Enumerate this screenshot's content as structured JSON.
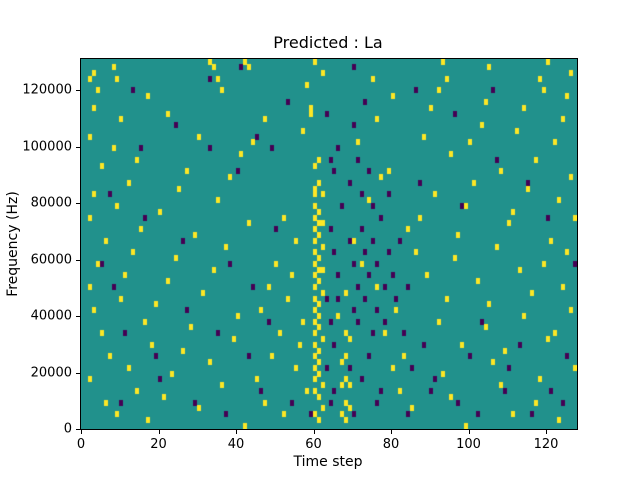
{
  "figure": {
    "title": "Predicted : La",
    "xlabel": "Time step",
    "ylabel": "Frequency (Hz)"
  },
  "chart_data": {
    "type": "heatmap",
    "title": "Predicted : La",
    "xlabel": "Time step",
    "ylabel": "Frequency (Hz)",
    "xlim": [
      0,
      128
    ],
    "ylim": [
      0,
      131072
    ],
    "x_ticks": [
      0,
      20,
      40,
      60,
      80,
      100,
      120
    ],
    "y_ticks": [
      0,
      20000,
      40000,
      60000,
      80000,
      100000,
      120000
    ],
    "grid_cols": 128,
    "grid_rows": 64,
    "legend": null,
    "grid": false,
    "colors": {
      "mid": "#21918c",
      "high": "#fde725",
      "low": "#440154"
    },
    "cells_high": [
      [
        2,
        60
      ],
      [
        3,
        61
      ],
      [
        8,
        62
      ],
      [
        9,
        60
      ],
      [
        17,
        57
      ],
      [
        33,
        63
      ],
      [
        34,
        62
      ],
      [
        35,
        60
      ],
      [
        36,
        58
      ],
      [
        42,
        63
      ],
      [
        43,
        62
      ],
      [
        47,
        53
      ],
      [
        58,
        59
      ],
      [
        59,
        55
      ],
      [
        60,
        63
      ],
      [
        62,
        61
      ],
      [
        75,
        60
      ],
      [
        80,
        57
      ],
      [
        92,
        58
      ],
      [
        93,
        63
      ],
      [
        94,
        60
      ],
      [
        104,
        56
      ],
      [
        105,
        62
      ],
      [
        118,
        60
      ],
      [
        119,
        58
      ],
      [
        120,
        63
      ],
      [
        125,
        57
      ],
      [
        126,
        61
      ],
      [
        3,
        55
      ],
      [
        4,
        58
      ],
      [
        10,
        53
      ],
      [
        22,
        54
      ],
      [
        30,
        50
      ],
      [
        44,
        49
      ],
      [
        57,
        51
      ],
      [
        59,
        54
      ],
      [
        71,
        49
      ],
      [
        76,
        53
      ],
      [
        88,
        50
      ],
      [
        90,
        55
      ],
      [
        100,
        49
      ],
      [
        103,
        52
      ],
      [
        112,
        51
      ],
      [
        114,
        55
      ],
      [
        122,
        49
      ],
      [
        124,
        53
      ],
      [
        2,
        50
      ],
      [
        5,
        45
      ],
      [
        8,
        48
      ],
      [
        14,
        46
      ],
      [
        27,
        44
      ],
      [
        41,
        47
      ],
      [
        60,
        45
      ],
      [
        61,
        46
      ],
      [
        79,
        44
      ],
      [
        95,
        47
      ],
      [
        108,
        44
      ],
      [
        117,
        46
      ],
      [
        3,
        40
      ],
      [
        12,
        42
      ],
      [
        25,
        41
      ],
      [
        38,
        43
      ],
      [
        60,
        41
      ],
      [
        61,
        42
      ],
      [
        62,
        40
      ],
      [
        77,
        43
      ],
      [
        91,
        40
      ],
      [
        101,
        42
      ],
      [
        115,
        41
      ],
      [
        126,
        43
      ],
      [
        2,
        36
      ],
      [
        9,
        38
      ],
      [
        20,
        37
      ],
      [
        35,
        39
      ],
      [
        52,
        36
      ],
      [
        60,
        38
      ],
      [
        61,
        37
      ],
      [
        74,
        39
      ],
      [
        87,
        36
      ],
      [
        99,
        38
      ],
      [
        111,
        37
      ],
      [
        123,
        39
      ],
      [
        127,
        36
      ],
      [
        6,
        32
      ],
      [
        15,
        34
      ],
      [
        29,
        33
      ],
      [
        43,
        35
      ],
      [
        55,
        32
      ],
      [
        60,
        34
      ],
      [
        61,
        33
      ],
      [
        62,
        35
      ],
      [
        70,
        32
      ],
      [
        84,
        34
      ],
      [
        97,
        33
      ],
      [
        110,
        35
      ],
      [
        121,
        32
      ],
      [
        4,
        28
      ],
      [
        13,
        30
      ],
      [
        24,
        29
      ],
      [
        37,
        31
      ],
      [
        50,
        28
      ],
      [
        60,
        30
      ],
      [
        61,
        29
      ],
      [
        62,
        31
      ],
      [
        72,
        28
      ],
      [
        86,
        30
      ],
      [
        96,
        29
      ],
      [
        107,
        31
      ],
      [
        119,
        28
      ],
      [
        125,
        30
      ],
      [
        2,
        24
      ],
      [
        11,
        26
      ],
      [
        22,
        25
      ],
      [
        34,
        27
      ],
      [
        48,
        24
      ],
      [
        54,
        26
      ],
      [
        60,
        26
      ],
      [
        61,
        25
      ],
      [
        62,
        27
      ],
      [
        76,
        24
      ],
      [
        89,
        26
      ],
      [
        102,
        25
      ],
      [
        113,
        27
      ],
      [
        124,
        24
      ],
      [
        3,
        20
      ],
      [
        10,
        22
      ],
      [
        19,
        21
      ],
      [
        31,
        23
      ],
      [
        46,
        20
      ],
      [
        53,
        22
      ],
      [
        60,
        22
      ],
      [
        61,
        21
      ],
      [
        68,
        23
      ],
      [
        81,
        20
      ],
      [
        94,
        22
      ],
      [
        105,
        21
      ],
      [
        116,
        23
      ],
      [
        126,
        20
      ],
      [
        5,
        16
      ],
      [
        16,
        18
      ],
      [
        28,
        17
      ],
      [
        40,
        19
      ],
      [
        51,
        16
      ],
      [
        57,
        18
      ],
      [
        60,
        18
      ],
      [
        61,
        17
      ],
      [
        66,
        19
      ],
      [
        78,
        16
      ],
      [
        92,
        18
      ],
      [
        104,
        17
      ],
      [
        114,
        19
      ],
      [
        122,
        16
      ],
      [
        7,
        12
      ],
      [
        18,
        14
      ],
      [
        26,
        13
      ],
      [
        39,
        15
      ],
      [
        49,
        12
      ],
      [
        56,
        14
      ],
      [
        60,
        14
      ],
      [
        61,
        13
      ],
      [
        69,
        15
      ],
      [
        83,
        12
      ],
      [
        98,
        14
      ],
      [
        109,
        13
      ],
      [
        120,
        15
      ],
      [
        2,
        8
      ],
      [
        12,
        10
      ],
      [
        23,
        9
      ],
      [
        33,
        11
      ],
      [
        45,
        8
      ],
      [
        55,
        10
      ],
      [
        60,
        10
      ],
      [
        61,
        9
      ],
      [
        67,
        11
      ],
      [
        68,
        8
      ],
      [
        80,
        10
      ],
      [
        93,
        9
      ],
      [
        106,
        11
      ],
      [
        118,
        8
      ],
      [
        127,
        10
      ],
      [
        6,
        4
      ],
      [
        14,
        6
      ],
      [
        21,
        5
      ],
      [
        36,
        7
      ],
      [
        47,
        4
      ],
      [
        58,
        6
      ],
      [
        60,
        6
      ],
      [
        61,
        5
      ],
      [
        67,
        7
      ],
      [
        68,
        4
      ],
      [
        82,
        6
      ],
      [
        95,
        5
      ],
      [
        108,
        7
      ],
      [
        117,
        4
      ],
      [
        9,
        2
      ],
      [
        17,
        1
      ],
      [
        30,
        3
      ],
      [
        42,
        0
      ],
      [
        52,
        2
      ],
      [
        60,
        2
      ],
      [
        61,
        1
      ],
      [
        62,
        3
      ],
      [
        67,
        2
      ],
      [
        68,
        1
      ],
      [
        85,
        3
      ],
      [
        99,
        0
      ],
      [
        111,
        2
      ],
      [
        123,
        1
      ],
      [
        60,
        8
      ],
      [
        60,
        12
      ],
      [
        60,
        16
      ],
      [
        60,
        20
      ],
      [
        60,
        24
      ],
      [
        60,
        28
      ],
      [
        60,
        32
      ],
      [
        60,
        36
      ],
      [
        60,
        40
      ],
      [
        61,
        11
      ],
      [
        61,
        19
      ],
      [
        61,
        27
      ],
      [
        61,
        35
      ],
      [
        62,
        7
      ],
      [
        62,
        15
      ],
      [
        62,
        23
      ],
      [
        68,
        12
      ],
      [
        68,
        16
      ],
      [
        69,
        3
      ],
      [
        69,
        7
      ]
    ],
    "cells_low": [
      [
        13,
        58
      ],
      [
        33,
        60
      ],
      [
        41,
        62
      ],
      [
        53,
        56
      ],
      [
        63,
        54
      ],
      [
        70,
        62
      ],
      [
        70,
        52
      ],
      [
        73,
        56
      ],
      [
        86,
        58
      ],
      [
        96,
        54
      ],
      [
        106,
        58
      ],
      [
        33,
        48
      ],
      [
        45,
        50
      ],
      [
        15,
        48
      ],
      [
        24,
        52
      ],
      [
        40,
        44
      ],
      [
        49,
        48
      ],
      [
        64,
        46
      ],
      [
        65,
        44
      ],
      [
        66,
        48
      ],
      [
        69,
        42
      ],
      [
        71,
        46
      ],
      [
        72,
        40
      ],
      [
        74,
        44
      ],
      [
        75,
        38
      ],
      [
        77,
        36
      ],
      [
        79,
        40
      ],
      [
        64,
        34
      ],
      [
        65,
        30
      ],
      [
        66,
        26
      ],
      [
        67,
        38
      ],
      [
        69,
        32
      ],
      [
        70,
        28
      ],
      [
        71,
        24
      ],
      [
        72,
        34
      ],
      [
        73,
        30
      ],
      [
        74,
        26
      ],
      [
        75,
        32
      ],
      [
        76,
        28
      ],
      [
        78,
        24
      ],
      [
        79,
        30
      ],
      [
        80,
        26
      ],
      [
        82,
        32
      ],
      [
        84,
        24
      ],
      [
        7,
        40
      ],
      [
        16,
        36
      ],
      [
        26,
        32
      ],
      [
        38,
        28
      ],
      [
        44,
        24
      ],
      [
        50,
        34
      ],
      [
        5,
        28
      ],
      [
        8,
        24
      ],
      [
        63,
        22
      ],
      [
        64,
        18
      ],
      [
        65,
        14
      ],
      [
        66,
        22
      ],
      [
        68,
        16
      ],
      [
        70,
        20
      ],
      [
        71,
        18
      ],
      [
        73,
        22
      ],
      [
        75,
        16
      ],
      [
        76,
        20
      ],
      [
        78,
        18
      ],
      [
        81,
        22
      ],
      [
        83,
        16
      ],
      [
        11,
        16
      ],
      [
        19,
        12
      ],
      [
        27,
        20
      ],
      [
        35,
        16
      ],
      [
        43,
        12
      ],
      [
        48,
        18
      ],
      [
        63,
        10
      ],
      [
        65,
        6
      ],
      [
        69,
        10
      ],
      [
        72,
        8
      ],
      [
        74,
        12
      ],
      [
        77,
        6
      ],
      [
        85,
        10
      ],
      [
        88,
        14
      ],
      [
        91,
        8
      ],
      [
        100,
        12
      ],
      [
        103,
        18
      ],
      [
        110,
        10
      ],
      [
        113,
        14
      ],
      [
        121,
        6
      ],
      [
        125,
        12
      ],
      [
        10,
        4
      ],
      [
        20,
        8
      ],
      [
        29,
        4
      ],
      [
        37,
        2
      ],
      [
        46,
        6
      ],
      [
        54,
        4
      ],
      [
        59,
        2
      ],
      [
        64,
        4
      ],
      [
        70,
        2
      ],
      [
        76,
        4
      ],
      [
        84,
        2
      ],
      [
        90,
        6
      ],
      [
        97,
        4
      ],
      [
        102,
        2
      ],
      [
        109,
        6
      ],
      [
        116,
        2
      ],
      [
        124,
        4
      ],
      [
        87,
        42
      ],
      [
        98,
        38
      ],
      [
        107,
        46
      ],
      [
        115,
        42
      ],
      [
        120,
        36
      ],
      [
        127,
        28
      ]
    ]
  }
}
